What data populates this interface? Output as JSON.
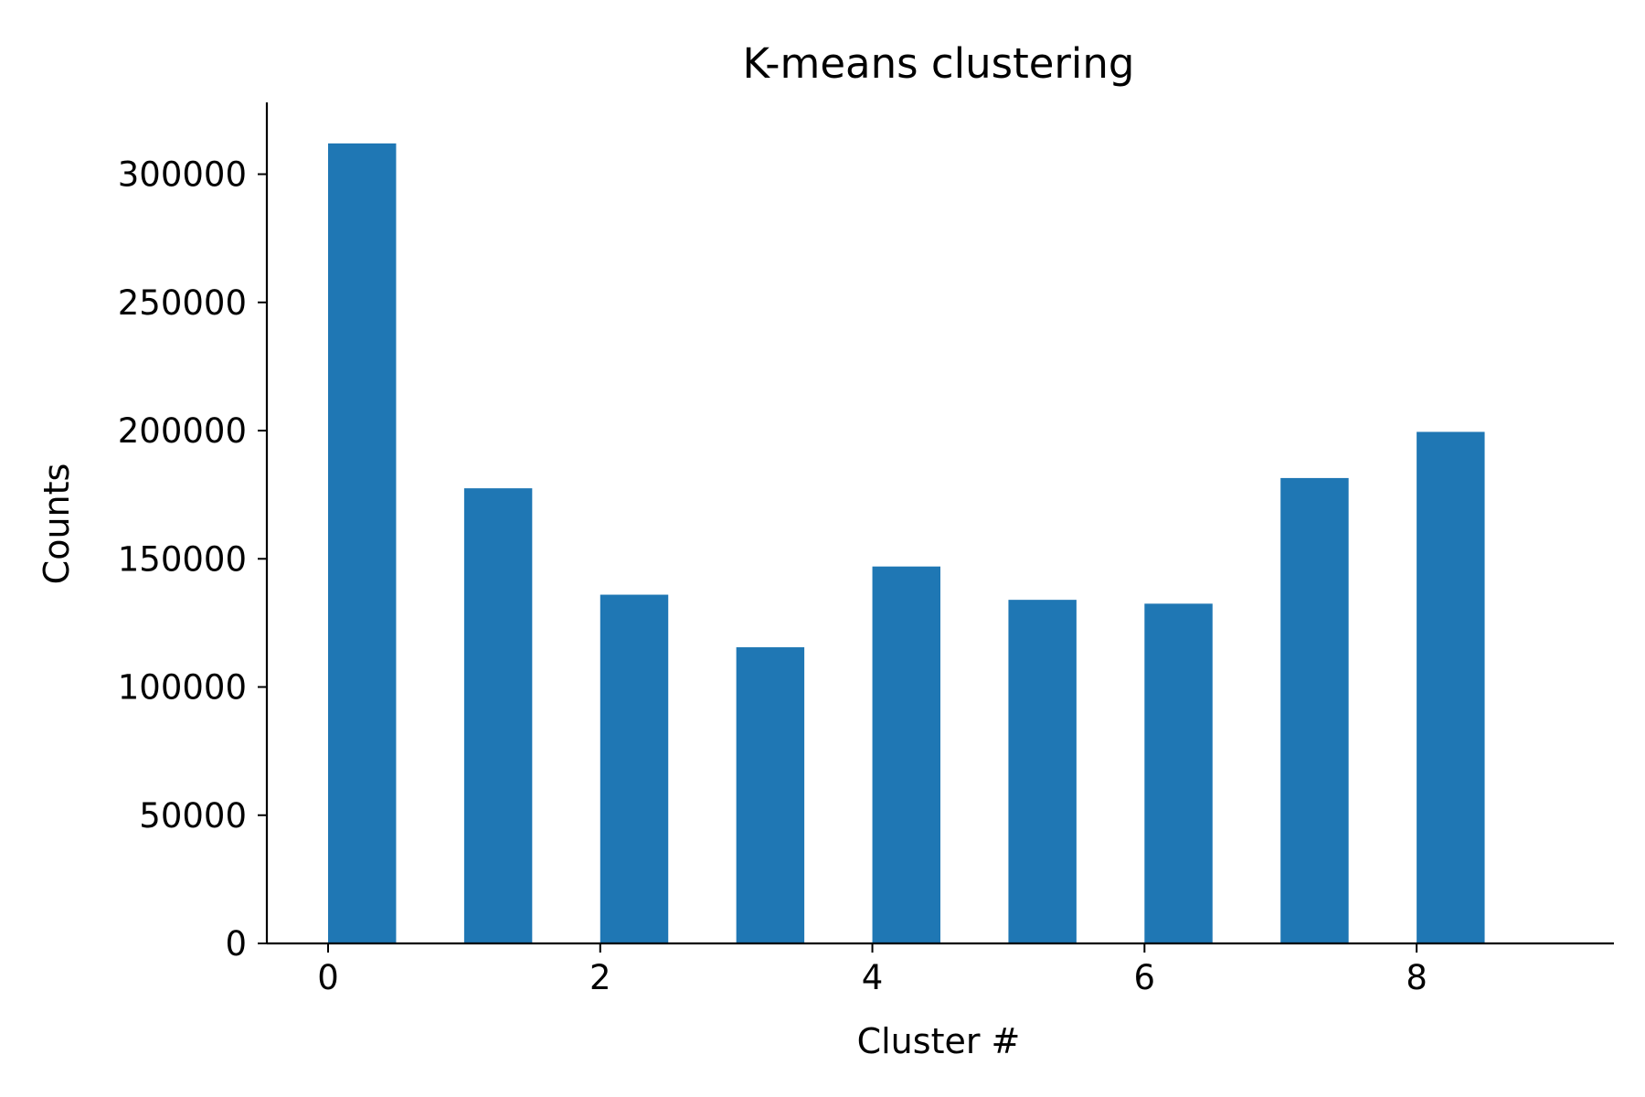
{
  "chart_data": {
    "type": "bar",
    "title": "K-means clustering",
    "xlabel": "Cluster #",
    "ylabel": "Counts",
    "x": [
      0.25,
      1.25,
      2.25,
      3.25,
      4.25,
      5.25,
      6.25,
      7.25,
      8.25
    ],
    "values": [
      312000,
      177500,
      136000,
      115500,
      147000,
      134000,
      132500,
      181500,
      199500
    ],
    "bar_width": 0.5,
    "xlim": [
      -0.45,
      9.45
    ],
    "ylim": [
      0,
      328000
    ],
    "xticks": [
      0,
      2,
      4,
      6,
      8
    ],
    "xtick_labels": [
      "0",
      "2",
      "4",
      "6",
      "8"
    ],
    "yticks": [
      0,
      50000,
      100000,
      150000,
      200000,
      250000,
      300000
    ],
    "ytick_labels": [
      "0",
      "50000",
      "100000",
      "150000",
      "200000",
      "250000",
      "300000"
    ],
    "grid": false,
    "colors": {
      "bar": "#1f77b4",
      "axis": "#000000"
    }
  }
}
